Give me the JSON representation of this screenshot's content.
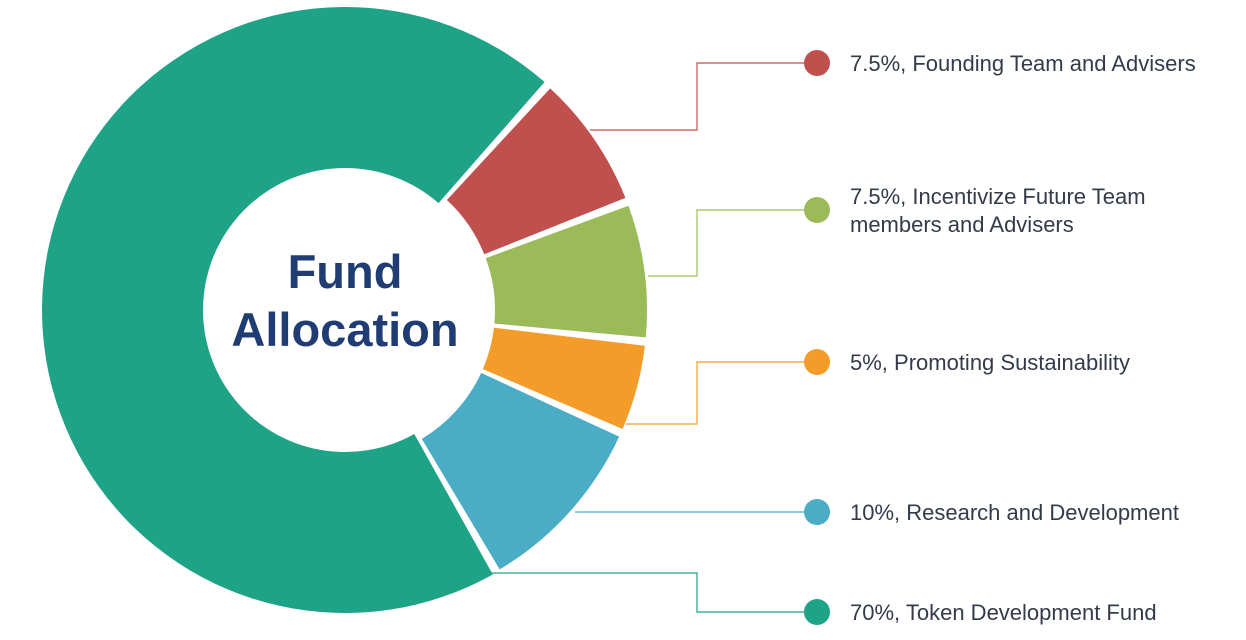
{
  "chart_data": {
    "type": "pie",
    "variant": "donut",
    "title_lines": [
      "Fund",
      "Allocation"
    ],
    "title_color": "#1f3d73",
    "slices": [
      {
        "label_lines": [
          "7.5%, Founding Team and Advisers"
        ],
        "value": 7.5,
        "color": "#c0504d"
      },
      {
        "label_lines": [
          "7.5%, Incentivize Future Team",
          "members and Advisers"
        ],
        "value": 7.5,
        "color": "#9bbb59"
      },
      {
        "label_lines": [
          "5%, Promoting Sustainability"
        ],
        "value": 5,
        "color": "#f39c2a"
      },
      {
        "label_lines": [
          "10%, Research and Development"
        ],
        "value": 10,
        "color": "#4bacc6"
      },
      {
        "label_lines": [
          "70%, Token Development Fund"
        ],
        "value": 70,
        "color": "#1fa386"
      }
    ],
    "legend_position": "right"
  }
}
